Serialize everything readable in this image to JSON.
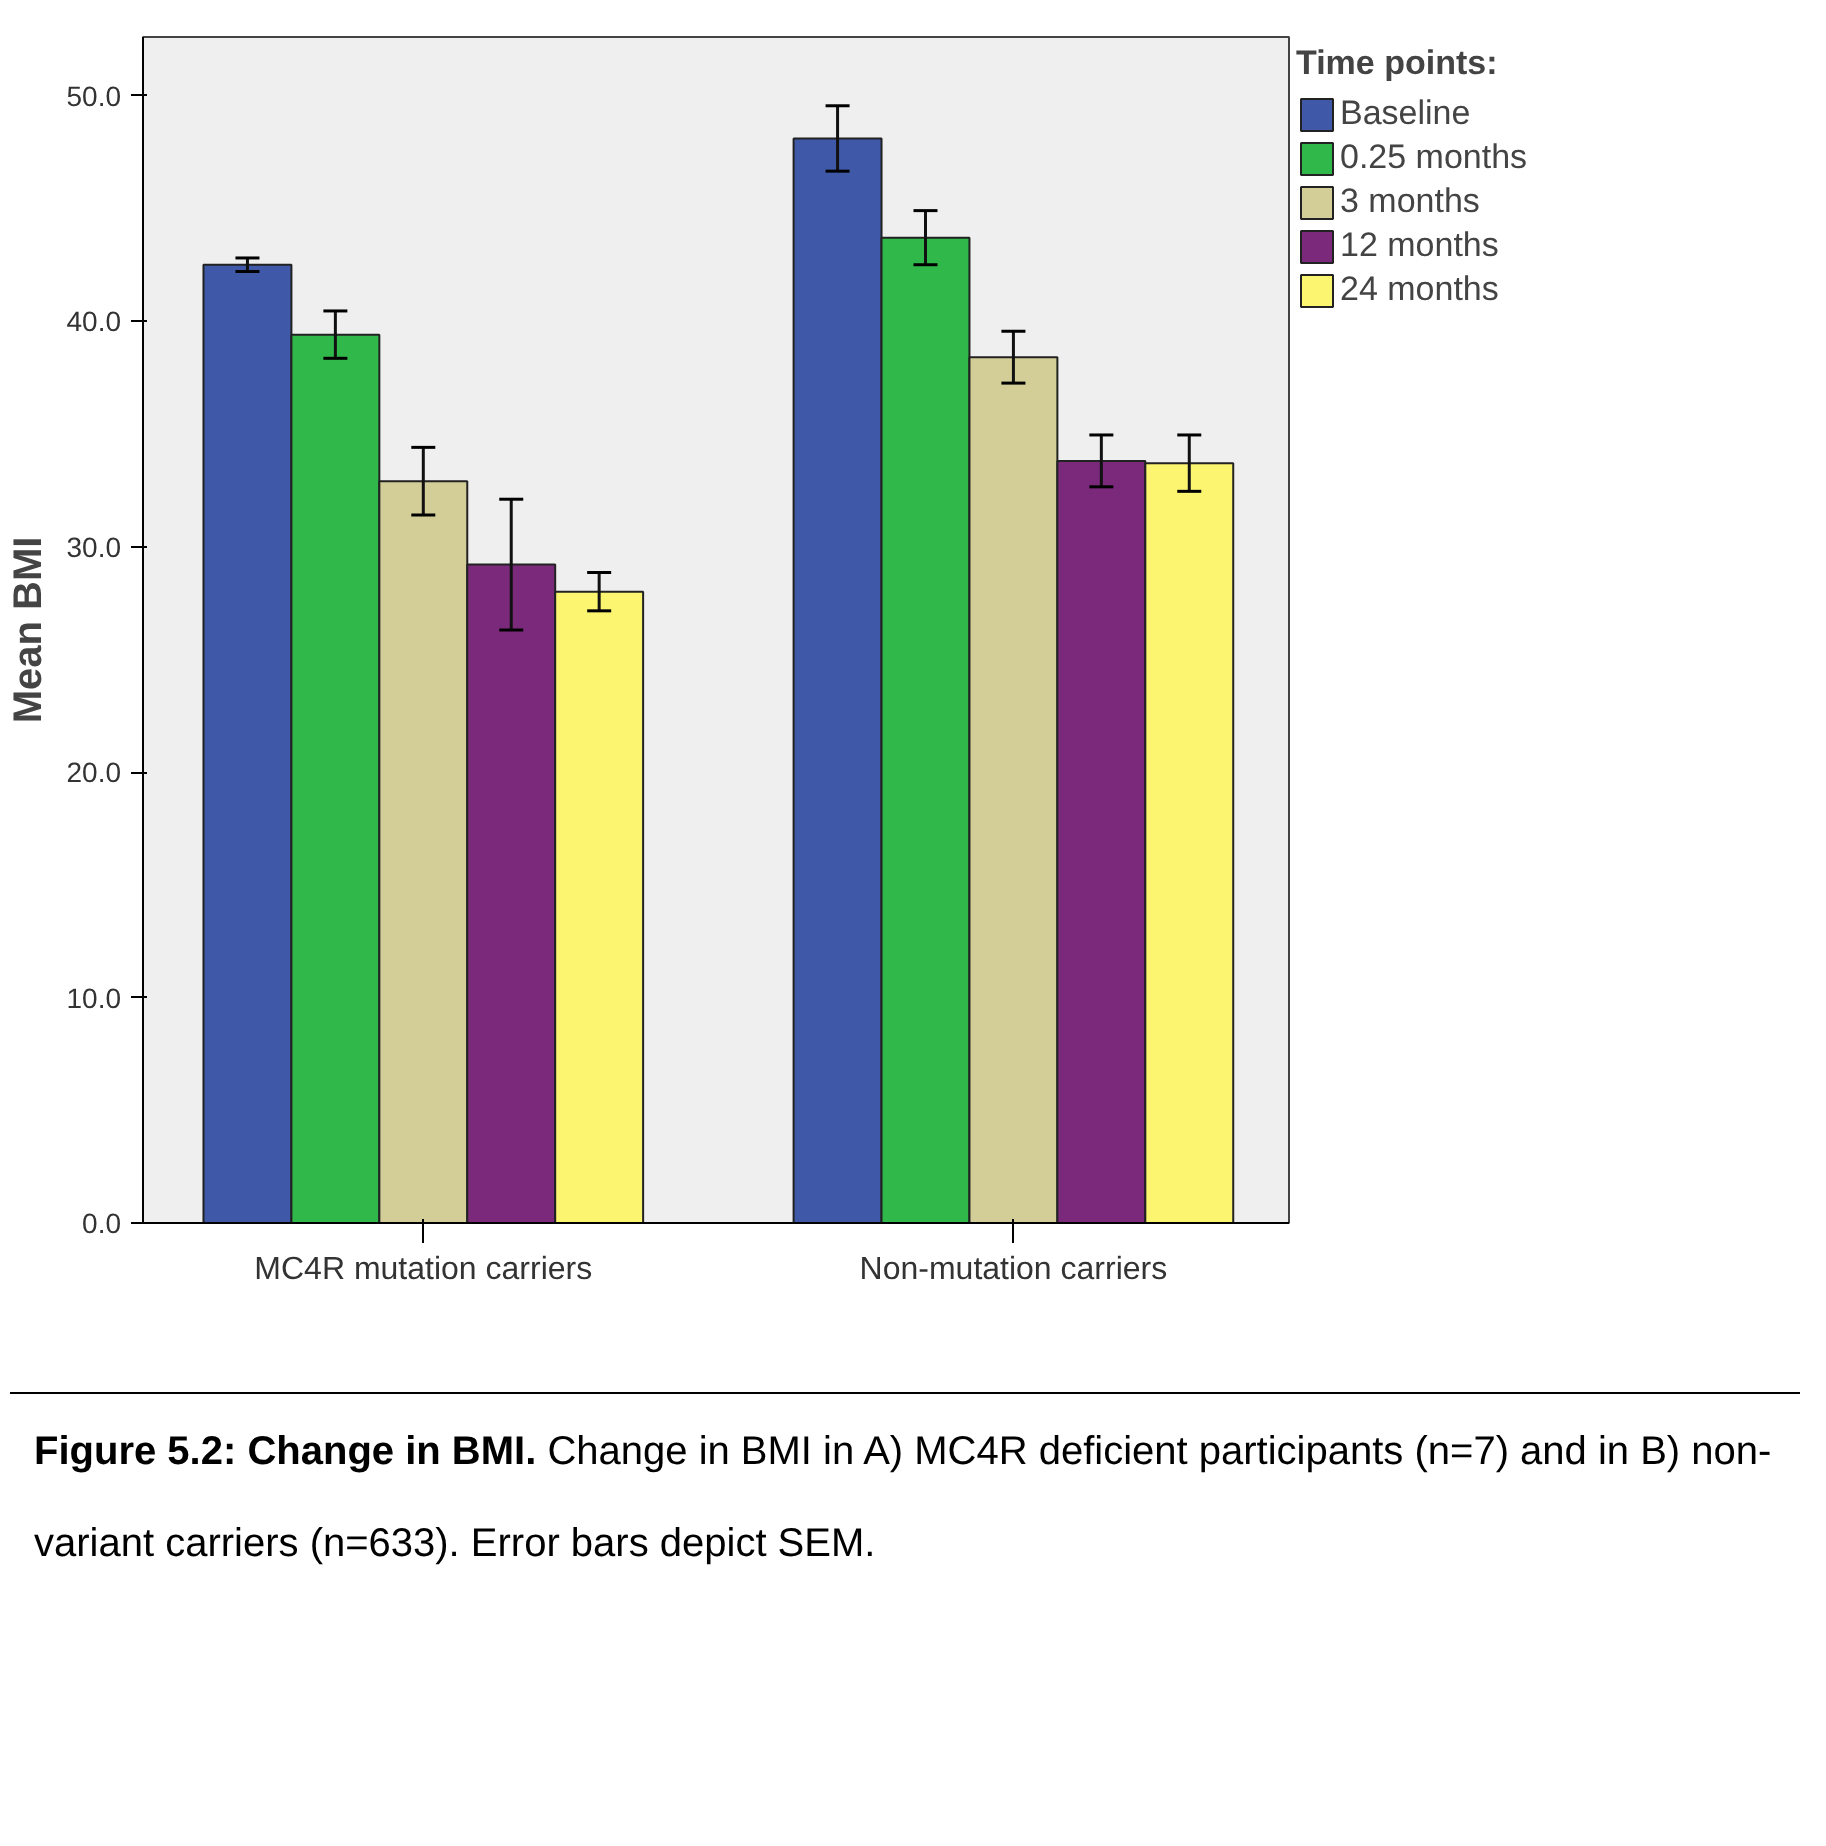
{
  "chart_data": {
    "type": "bar",
    "categories": [
      "MC4R mutation carriers",
      "Non-mutation carriers"
    ],
    "series": [
      {
        "name": "Baseline",
        "color": "#3f59a8",
        "values": [
          42.5,
          48.1
        ],
        "errors": [
          0.3,
          1.45
        ]
      },
      {
        "name": "0.25 months",
        "color": "#30b94a",
        "values": [
          39.4,
          43.7
        ],
        "errors": [
          1.05,
          1.2
        ]
      },
      {
        "name": "3 months",
        "color": "#d3ce98",
        "values": [
          32.9,
          38.4
        ],
        "errors": [
          1.5,
          1.15
        ]
      },
      {
        "name": "12 months",
        "color": "#7b2a7b",
        "values": [
          29.2,
          33.8
        ],
        "errors": [
          2.9,
          1.15
        ]
      },
      {
        "name": "24 months",
        "color": "#fbf570",
        "values": [
          28.0,
          33.7
        ],
        "errors": [
          0.85,
          1.25
        ]
      }
    ],
    "ylabel": "Mean BMI",
    "legend_title": "Time points:",
    "legend": "right",
    "ylim": [
      0,
      52.6
    ],
    "yticks": [
      {
        "value": 0,
        "label": "0.0"
      },
      {
        "value": 10,
        "label": "10.0"
      },
      {
        "value": 20,
        "label": "20.0"
      },
      {
        "value": 30,
        "label": "30.0"
      },
      {
        "value": 40,
        "label": "40.0"
      },
      {
        "value": 50,
        "label": "50.0"
      }
    ],
    "grid": false,
    "annotations": [
      "Figure 5.2: Change in BMI.",
      "Change in BMI in A) MC4R deficient participants (n=7) and in B) non-variant carriers (n=633). Error bars depict SEM."
    ]
  }
}
